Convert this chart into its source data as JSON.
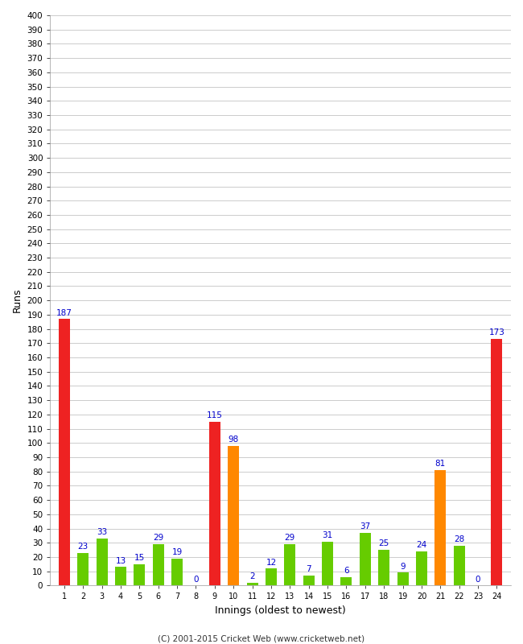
{
  "innings": [
    1,
    2,
    3,
    4,
    5,
    6,
    7,
    8,
    9,
    10,
    11,
    12,
    13,
    14,
    15,
    16,
    17,
    18,
    19,
    20,
    21,
    22,
    23,
    24
  ],
  "runs": [
    187,
    23,
    33,
    13,
    15,
    29,
    19,
    0,
    115,
    98,
    2,
    12,
    29,
    7,
    31,
    6,
    37,
    25,
    9,
    24,
    81,
    28,
    0,
    173
  ],
  "colors": [
    "#ee2222",
    "#66cc00",
    "#66cc00",
    "#66cc00",
    "#66cc00",
    "#66cc00",
    "#66cc00",
    "#66cc00",
    "#ee2222",
    "#ff8800",
    "#66cc00",
    "#66cc00",
    "#66cc00",
    "#66cc00",
    "#66cc00",
    "#66cc00",
    "#66cc00",
    "#66cc00",
    "#66cc00",
    "#66cc00",
    "#ff8800",
    "#66cc00",
    "#66cc00",
    "#ee2222"
  ],
  "xlabel": "Innings (oldest to newest)",
  "ylabel": "Runs",
  "ylim": [
    0,
    400
  ],
  "yticks": [
    0,
    10,
    20,
    30,
    40,
    50,
    60,
    70,
    80,
    90,
    100,
    110,
    120,
    130,
    140,
    150,
    160,
    170,
    180,
    190,
    200,
    210,
    220,
    230,
    240,
    250,
    260,
    270,
    280,
    290,
    300,
    310,
    320,
    330,
    340,
    350,
    360,
    370,
    380,
    390,
    400
  ],
  "label_color": "#0000cc",
  "background_color": "#ffffff",
  "plot_bg_color": "#ffffff",
  "grid_color": "#cccccc",
  "footer": "(C) 2001-2015 Cricket Web (www.cricketweb.net)",
  "bar_width": 0.6
}
